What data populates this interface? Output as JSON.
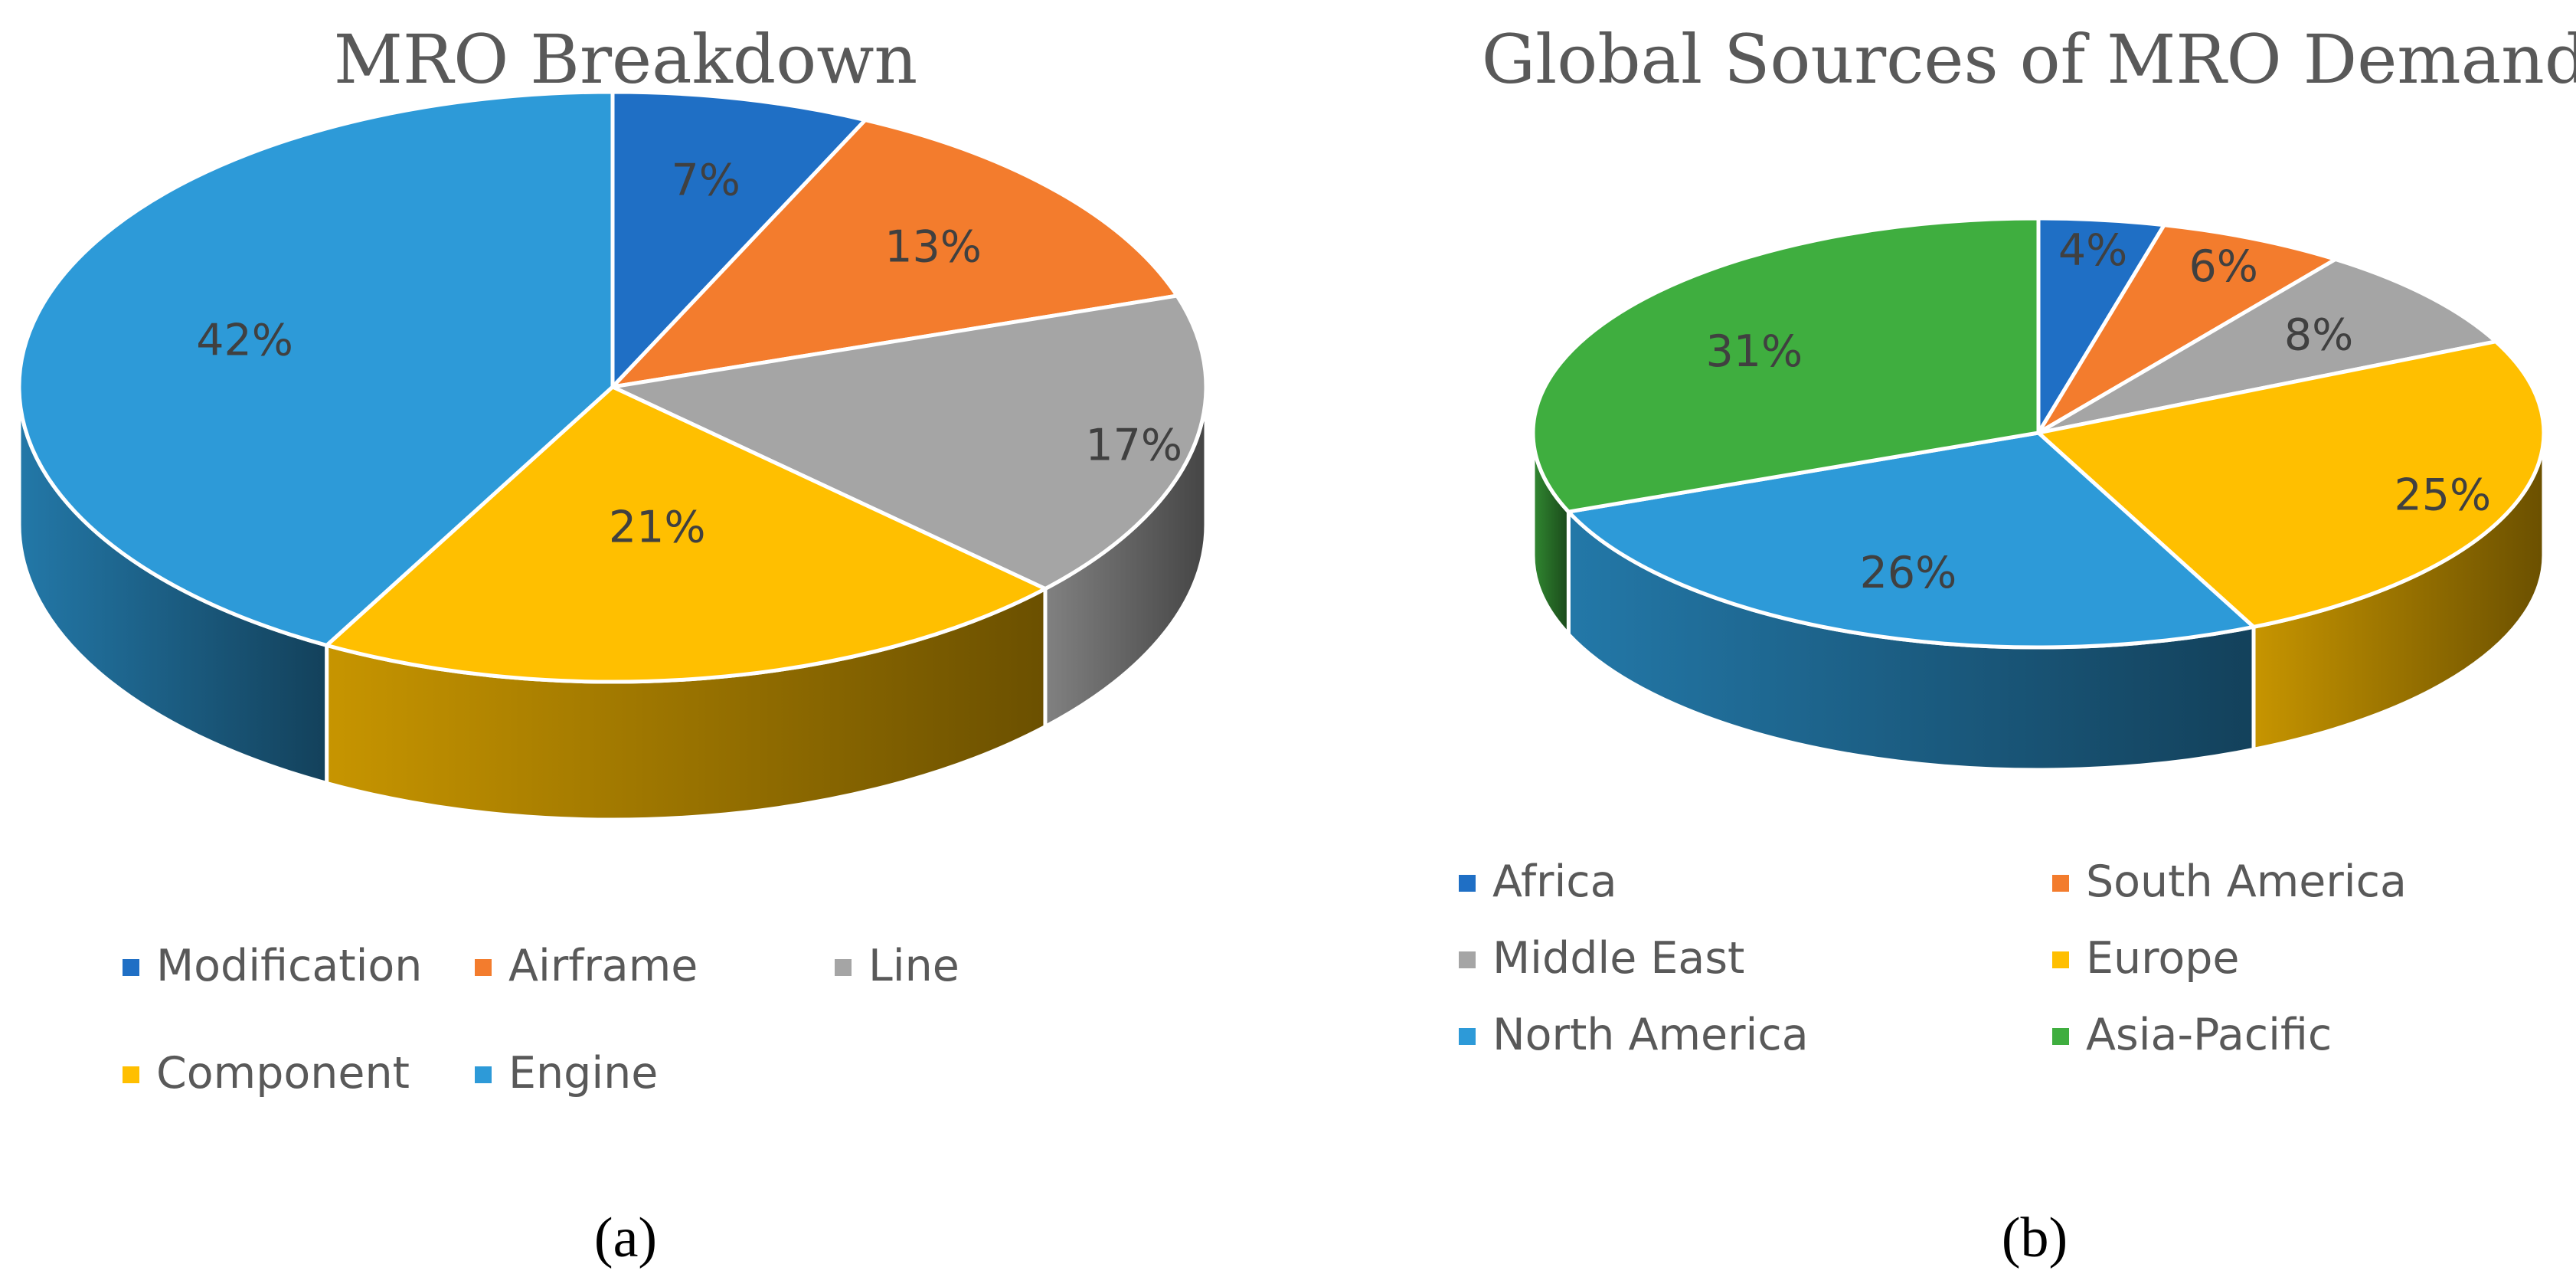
{
  "chart_data": [
    {
      "type": "pie",
      "title": "MRO Breakdown",
      "caption": "(a)",
      "caption_letter": "a",
      "slices": [
        {
          "name": "Modification",
          "value": 7,
          "label": "7%",
          "color": "#1f6fc5"
        },
        {
          "name": "Airframe",
          "value": 13,
          "label": "13%",
          "color": "#f37c2d"
        },
        {
          "name": "Line",
          "value": 17,
          "label": "17%",
          "color": "#a5a5a5"
        },
        {
          "name": "Component",
          "value": 21,
          "label": "21%",
          "color": "#ffbf00"
        },
        {
          "name": "Engine",
          "value": 42,
          "label": "42%",
          "color": "#2d9ad8"
        }
      ],
      "legend_placement": "bottom"
    },
    {
      "type": "pie",
      "title": "Global Sources of MRO Demand",
      "caption": "(b)",
      "caption_letter": "b",
      "slices": [
        {
          "name": "Africa",
          "value": 4,
          "label": "4%",
          "color": "#1f6fc5"
        },
        {
          "name": "South America",
          "value": 6,
          "label": "6%",
          "color": "#f37c2d"
        },
        {
          "name": "Middle East",
          "value": 8,
          "label": "8%",
          "color": "#a5a5a5"
        },
        {
          "name": "Europe",
          "value": 25,
          "label": "25%",
          "color": "#ffbf00"
        },
        {
          "name": "North America",
          "value": 26,
          "label": "26%",
          "color": "#2d9ad8"
        },
        {
          "name": "Asia-Pacific",
          "value": 31,
          "label": "31%",
          "color": "#3fae3f"
        }
      ],
      "legend_placement": "bottom"
    }
  ]
}
